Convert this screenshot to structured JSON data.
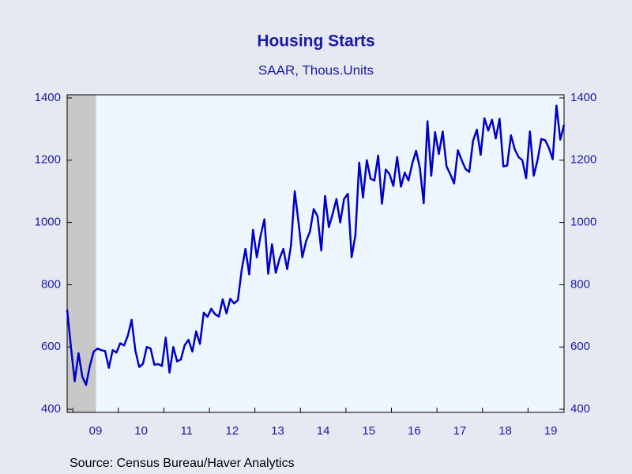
{
  "chart_data": {
    "type": "line",
    "title": "Housing Starts",
    "subtitle": "SAAR, Thous.Units",
    "source": "Source:  Census Bureau/Haver Analytics",
    "categories": [
      null,
      null,
      null,
      null,
      null,
      null,
      null,
      null,
      "09",
      null,
      null,
      null,
      null,
      null,
      null,
      null,
      null,
      null,
      null,
      null,
      "10",
      null,
      null,
      null,
      null,
      null,
      null,
      null,
      null,
      null,
      null,
      null,
      "11",
      null,
      null,
      null,
      null,
      null,
      null,
      null,
      null,
      null,
      null,
      null,
      "12",
      null,
      null,
      null,
      null,
      null,
      null,
      null,
      null,
      null,
      null,
      null,
      "13",
      null,
      null,
      null,
      null,
      null,
      null,
      null,
      null,
      null,
      null,
      null,
      "14",
      null,
      null,
      null,
      null,
      null,
      null,
      null,
      null,
      null,
      null,
      null,
      "15",
      null,
      null,
      null,
      null,
      null,
      null,
      null,
      null,
      null,
      null,
      null,
      "16",
      null,
      null,
      null,
      null,
      null,
      null,
      null,
      null,
      null,
      null,
      null,
      "17",
      null,
      null,
      null,
      null,
      null,
      null,
      null,
      null,
      null,
      null,
      null,
      "18",
      null,
      null,
      null,
      null,
      null,
      null,
      null,
      null,
      null,
      null,
      null,
      "19",
      null,
      null,
      null
    ],
    "series": [
      {
        "name": "Housing Starts",
        "color": "#0000c8",
        "values": [
          720,
          600,
          490,
          580,
          505,
          478,
          540,
          585,
          595,
          590,
          587,
          533,
          590,
          582,
          612,
          605,
          636,
          687,
          588,
          536,
          546,
          600,
          595,
          543,
          545,
          539,
          630,
          518,
          600,
          554,
          560,
          606,
          623,
          585,
          650,
          610,
          710,
          697,
          723,
          705,
          698,
          753,
          708,
          755,
          740,
          750,
          847,
          915,
          833,
          976,
          888,
          958,
          1010,
          835,
          930,
          838,
          884,
          915,
          850,
          925,
          1100,
          1000,
          888,
          940,
          970,
          1043,
          1020,
          910,
          1085,
          985,
          1028,
          1075,
          1000,
          1075,
          1092,
          888,
          960,
          1192,
          1080,
          1200,
          1140,
          1135,
          1215,
          1060,
          1170,
          1155,
          1117,
          1210,
          1115,
          1160,
          1135,
          1190,
          1230,
          1175,
          1062,
          1325,
          1150,
          1290,
          1220,
          1292,
          1180,
          1155,
          1125,
          1232,
          1200,
          1172,
          1162,
          1262,
          1298,
          1217,
          1335,
          1295,
          1330,
          1270,
          1333,
          1180,
          1183,
          1280,
          1235,
          1210,
          1200,
          1142,
          1292,
          1150,
          1200,
          1268,
          1264,
          1240,
          1203,
          1375,
          1266,
          1314
        ]
      }
    ],
    "shaded": [
      0,
      7
    ],
    "ylim": [
      390,
      1410
    ],
    "yticks": [
      400,
      600,
      800,
      1000,
      1200,
      1400
    ],
    "y2lim": [
      390,
      1410
    ],
    "y2ticks": [
      400,
      600,
      800,
      1000,
      1200,
      1400
    ]
  }
}
